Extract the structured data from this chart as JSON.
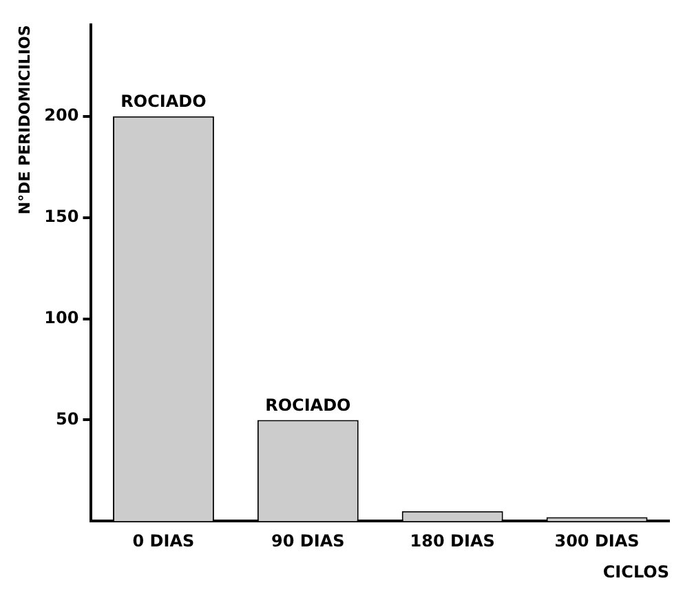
{
  "chart_data": {
    "type": "bar",
    "categories": [
      "0 DIAS",
      "90 DIAS",
      "180 DIAS",
      "300 DIAS"
    ],
    "values": [
      200,
      50,
      5,
      2
    ],
    "color": "#cccccc",
    "xlabel": "CICLOS",
    "ylabel": "N°DE PERIDOMICILIOS",
    "ylim": [
      0,
      245
    ],
    "yticks": [
      50,
      100,
      150,
      200
    ],
    "grid": false,
    "legend": false,
    "annotations": [
      {
        "text": "ROCIADO",
        "x": "0 DIAS",
        "y": 200
      },
      {
        "text": "ROCIADO",
        "x": "90 DIAS",
        "y": 50
      }
    ]
  }
}
